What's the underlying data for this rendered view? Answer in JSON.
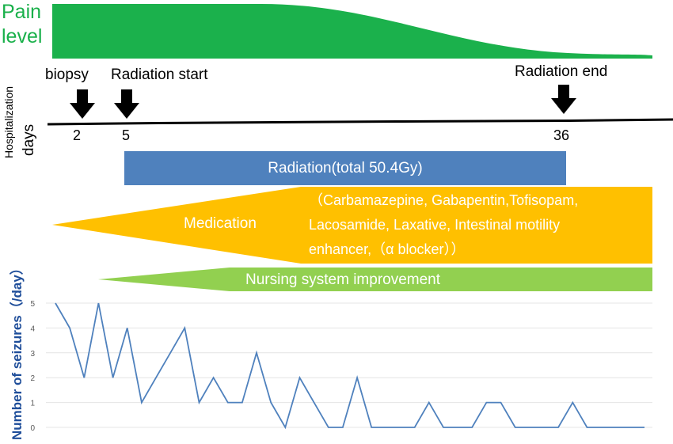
{
  "pain": {
    "label_line1": "Pain",
    "label_line2": "level",
    "color": "#1bb14c"
  },
  "timeline": {
    "axis_label_small": "Hospitalization",
    "axis_label_large": "days",
    "events": [
      {
        "label": "biopsy",
        "day": "2"
      },
      {
        "label": "Radiation start",
        "day": "5"
      },
      {
        "label": "Radiation end",
        "day": "36"
      }
    ]
  },
  "bars": {
    "radiation": {
      "label": "Radiation(total 50.4Gy)",
      "color": "#4f81bd"
    },
    "medication": {
      "label": "Medication",
      "detail_lines": [
        "（Carbamazepine, Gabapentin,Tofisopam,",
        "Lacosamide, Laxative, Intestinal motility",
        "enhancer,（α blocker））"
      ],
      "color": "#ffc000"
    },
    "nursing": {
      "label": "Nursing system improvement",
      "color": "#92d050"
    }
  },
  "chart_data": {
    "type": "line",
    "ylabel": "Number of seizures（/day）",
    "ylim": [
      0,
      5
    ],
    "yticks": [
      "0",
      "1",
      "2",
      "3",
      "4",
      "5"
    ],
    "grid": true,
    "line_color": "#4f81bd",
    "x": [
      1,
      2,
      3,
      4,
      5,
      6,
      7,
      8,
      9,
      10,
      11,
      12,
      13,
      14,
      15,
      16,
      17,
      18,
      19,
      20,
      21,
      22,
      23,
      24,
      25,
      26,
      27,
      28,
      29,
      30,
      31,
      32,
      33,
      34,
      35,
      36,
      37,
      38,
      39,
      40,
      41,
      42
    ],
    "values": [
      5,
      4,
      2,
      5,
      2,
      4,
      1,
      2,
      3,
      4,
      1,
      2,
      1,
      1,
      3,
      1,
      0,
      2,
      1,
      0,
      0,
      2,
      0,
      0,
      0,
      0,
      1,
      0,
      0,
      0,
      1,
      1,
      0,
      0,
      0,
      0,
      1,
      0,
      0,
      0,
      0,
      0
    ]
  }
}
